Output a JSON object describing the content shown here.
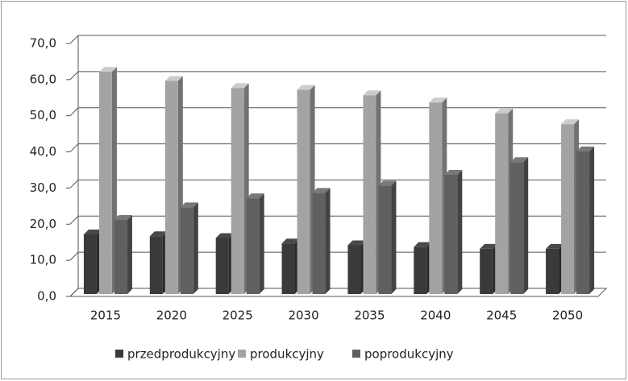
{
  "chart_data": {
    "type": "bar3d",
    "categories": [
      "2015",
      "2020",
      "2025",
      "2030",
      "2035",
      "2040",
      "2045",
      "2050"
    ],
    "series": [
      {
        "name": "przedprodukcyjny",
        "color": "#3a3a3a",
        "values": [
          16.5,
          16.0,
          15.5,
          14.0,
          13.5,
          13.0,
          12.5,
          12.5
        ]
      },
      {
        "name": "produkcyjny",
        "color": "#a3a3a3",
        "values": [
          61.5,
          59.0,
          57.0,
          56.5,
          55.0,
          53.0,
          50.0,
          47.0
        ]
      },
      {
        "name": "poprodukcyjny",
        "color": "#606060",
        "values": [
          20.5,
          24.0,
          26.5,
          28.0,
          30.0,
          33.0,
          36.5,
          39.5
        ]
      }
    ],
    "ylim": [
      0,
      70
    ],
    "yticks": [
      {
        "value": 0,
        "label": "0,0"
      },
      {
        "value": 10,
        "label": "10,0"
      },
      {
        "value": 20,
        "label": "20,0"
      },
      {
        "value": 30,
        "label": "30,0"
      },
      {
        "value": 40,
        "label": "40,0"
      },
      {
        "value": 50,
        "label": "50,0"
      },
      {
        "value": 60,
        "label": "60,0"
      },
      {
        "value": 70,
        "label": "70,0"
      }
    ],
    "grid": true,
    "legend": "bottom"
  }
}
